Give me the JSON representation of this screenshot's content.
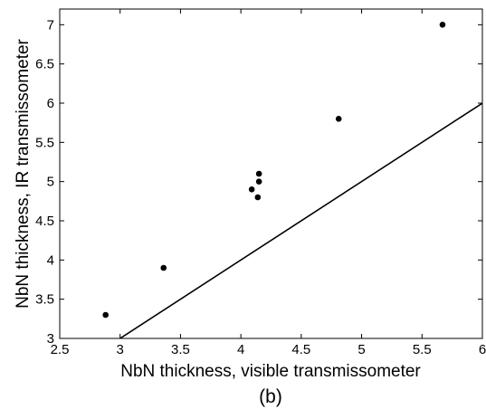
{
  "chart_data": {
    "type": "scatter",
    "title": "",
    "xlabel": "NbN thickness, visible transmissometer",
    "ylabel": "NbN thickness, IR transmissometer",
    "caption": "(b)",
    "xlim": [
      2.5,
      6
    ],
    "ylim": [
      3,
      7.2
    ],
    "xticks": [
      2.5,
      3,
      3.5,
      4,
      4.5,
      5,
      5.5,
      6
    ],
    "xtick_labels": [
      "2.5",
      "3",
      "3.5",
      "4",
      "4.5",
      "5",
      "5.5",
      "6"
    ],
    "yticks": [
      3,
      3.5,
      4,
      4.5,
      5,
      5.5,
      6,
      6.5,
      7
    ],
    "ytick_labels": [
      "3",
      "3.5",
      "4",
      "4.5",
      "5",
      "5.5",
      "6",
      "6.5",
      "7"
    ],
    "grid": false,
    "series": [
      {
        "type": "scatter",
        "color": "#000000",
        "points": [
          {
            "x": 2.88,
            "y": 3.3
          },
          {
            "x": 3.36,
            "y": 3.9
          },
          {
            "x": 4.09,
            "y": 4.9
          },
          {
            "x": 4.14,
            "y": 4.8
          },
          {
            "x": 4.15,
            "y": 5.1
          },
          {
            "x": 4.15,
            "y": 5.0
          },
          {
            "x": 4.81,
            "y": 5.8
          },
          {
            "x": 5.67,
            "y": 7.0
          }
        ]
      },
      {
        "type": "line",
        "color": "#000000",
        "points": [
          {
            "x": 2.9,
            "y": 2.9
          },
          {
            "x": 6.0,
            "y": 6.0
          }
        ]
      }
    ]
  }
}
